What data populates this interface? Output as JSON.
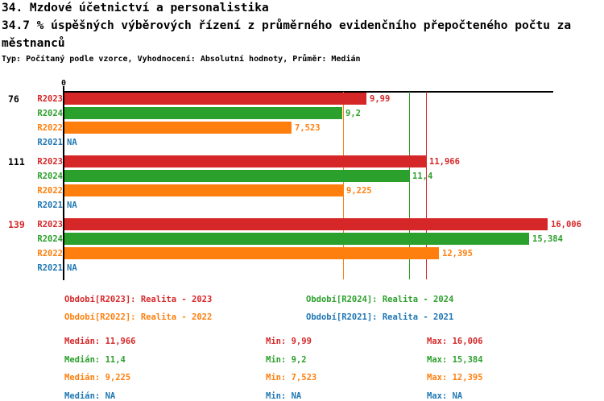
{
  "header": {
    "title": "34. Mzdové účetnictví a personalistika",
    "subtitle_lines": [
      "34.7 % úspěšných výběrových řízení z průměrného evidenčního přepočteného počtu za",
      "městnanců"
    ],
    "meta": "Typ: Počítaný podle vzorce, Vyhodnocení: Absolutní hodnoty, Průměr: Medián"
  },
  "colors": {
    "R2023": "#d62728",
    "R2024": "#2ca02c",
    "R2022": "#ff7f0e",
    "R2021": "#1f77b4",
    "axis": "#000000"
  },
  "chart_data": {
    "type": "bar",
    "orientation": "horizontal",
    "xlim": [
      0,
      16.2
    ],
    "x_zero_label": "0",
    "grid": false,
    "series_order": [
      "R2023",
      "R2024",
      "R2022",
      "R2021"
    ],
    "groups": [
      {
        "label": "76",
        "label_color": "#000000",
        "bars": [
          {
            "series": "R2023",
            "display": "9,99",
            "value": 9.99
          },
          {
            "series": "R2024",
            "display": "9,2",
            "value": 9.2
          },
          {
            "series": "R2022",
            "display": "7,523",
            "value": 7.523
          },
          {
            "series": "R2021",
            "display": "NA",
            "value": null
          }
        ]
      },
      {
        "label": "111",
        "label_color": "#000000",
        "bars": [
          {
            "series": "R2023",
            "display": "11,966",
            "value": 11.966
          },
          {
            "series": "R2024",
            "display": "11,4",
            "value": 11.4
          },
          {
            "series": "R2022",
            "display": "9,225",
            "value": 9.225
          },
          {
            "series": "R2021",
            "display": "NA",
            "value": null
          }
        ]
      },
      {
        "label": "139",
        "label_color": "#d62728",
        "bars": [
          {
            "series": "R2023",
            "display": "16,006",
            "value": 16.006
          },
          {
            "series": "R2024",
            "display": "15,384",
            "value": 15.384
          },
          {
            "series": "R2022",
            "display": "12,395",
            "value": 12.395
          },
          {
            "series": "R2021",
            "display": "NA",
            "value": null
          }
        ]
      }
    ],
    "median_lines": [
      {
        "series": "R2022",
        "value": 9.225
      },
      {
        "series": "R2024",
        "value": 11.4
      },
      {
        "series": "R2023",
        "value": 11.966
      }
    ]
  },
  "legend": {
    "items": [
      {
        "series": "R2023",
        "text": "Období[R2023]: Realita - 2023",
        "col": 0,
        "row": 0
      },
      {
        "series": "R2024",
        "text": "Období[R2024]: Realita - 2024",
        "col": 1,
        "row": 0
      },
      {
        "series": "R2022",
        "text": "Období[R2022]: Realita - 2022",
        "col": 0,
        "row": 1
      },
      {
        "series": "R2021",
        "text": "Období[R2021]: Realita - 2021",
        "col": 1,
        "row": 1
      }
    ]
  },
  "stats": {
    "rows": [
      {
        "series": "R2023",
        "median": "Medián: 11,966",
        "min": "Min: 9,99",
        "max": "Max: 16,006"
      },
      {
        "series": "R2024",
        "median": "Medián: 11,4",
        "min": "Min: 9,2",
        "max": "Max: 15,384"
      },
      {
        "series": "R2022",
        "median": "Medián: 9,225",
        "min": "Min: 7,523",
        "max": "Max: 12,395"
      },
      {
        "series": "R2021",
        "median": "Medián: NA",
        "min": "Min: NA",
        "max": "Max: NA"
      }
    ]
  }
}
